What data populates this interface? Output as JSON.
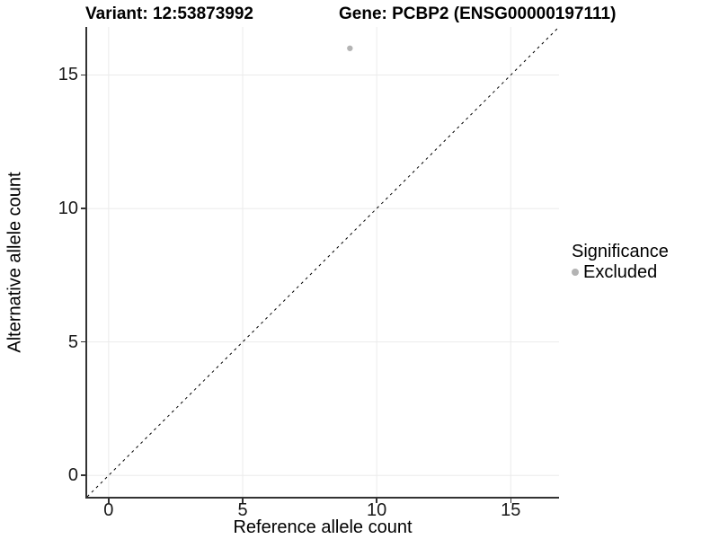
{
  "header": {
    "title_left": "Variant: 12:53873992",
    "title_right": "Gene: PCBP2 (ENSG00000197111)"
  },
  "chart_data": {
    "type": "scatter",
    "titles": {
      "left": "Variant: 12:53873992",
      "right": "Gene: PCBP2 (ENSG00000197111)"
    },
    "xlabel": "Reference allele count",
    "ylabel": "Alternative allele count",
    "xlim": [
      -0.8,
      16.8
    ],
    "ylim": [
      -0.8,
      16.8
    ],
    "xticks": [
      0,
      5,
      10,
      15
    ],
    "yticks": [
      0,
      5,
      10,
      15
    ],
    "grid": "major",
    "identity_line": {
      "style": "dashed",
      "slope": 1,
      "intercept": 0
    },
    "series": [
      {
        "name": "Excluded",
        "color": "#b4b4b4",
        "point_radius": 3.2,
        "points": [
          {
            "x": 9,
            "y": 16
          }
        ]
      }
    ],
    "legend": {
      "title": "Significance",
      "position": "right",
      "items": [
        {
          "label": "Excluded",
          "color": "#b4b4b4"
        }
      ]
    }
  },
  "colors": {
    "background": "#ffffff",
    "grid": "#ebebeb",
    "axis": "#333333",
    "dashed_line": "#000000",
    "text": "#000000",
    "point": "#b4b4b4"
  }
}
